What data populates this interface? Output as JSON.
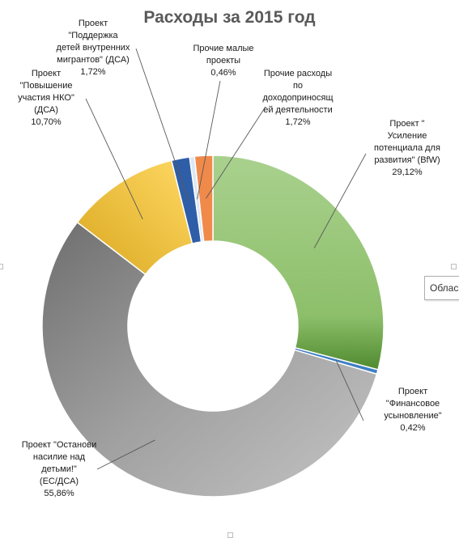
{
  "chart_data": {
    "type": "pie",
    "variant": "donut",
    "title": "Расходы за 2015 год",
    "slices": [
      {
        "label": "Проект \"Усиление потенциала для развития\" (BfW)",
        "value": 29.12,
        "pct_text": "29,12%",
        "color": "#8dbf6a"
      },
      {
        "label": "Проект \"Финансовое усыновление\"",
        "value": 0.42,
        "pct_text": "0,42%",
        "color": "#3f7fc4"
      },
      {
        "label": "Проект \"Останови насилие над детьми!\" (ЕС/ДСА)",
        "value": 55.86,
        "pct_text": "55,86%",
        "color": "#9e9e9e"
      },
      {
        "label": "Проект \"Повышение участия НКО\" (ДСА)",
        "value": 10.7,
        "pct_text": "10,70%",
        "color": "#f2c43f"
      },
      {
        "label": "Проект \"Поддержка детей внутренних мигрантов\" (ДСА)",
        "value": 1.72,
        "pct_text": "1,72%",
        "color": "#2f5ea8"
      },
      {
        "label": "Прочие малые проекты",
        "value": 0.46,
        "pct_text": "0,46%",
        "color": "#dbe7f5"
      },
      {
        "label": "Прочие расходы по доходоприносящей деятельности",
        "value": 1.72,
        "pct_text": "1,72%",
        "color": "#f08a4b"
      }
    ]
  },
  "labels": {
    "bfw": "Проект \"\nУсиление\nпотенциала для\nразвития\" (BfW)\n29,12%",
    "adoption": "Проект\n\"Финансовое\nусыновление\"\n0,42%",
    "stop_violence": "Проект \"Останови\nнасилие над\nдетьми!\"\n(ЕС/ДСА)\n55,86%",
    "nko": "Проект\n\"Повышение\nучастия НКО\"\n(ДСА)\n10,70%",
    "migrants": "Проект\n\"Поддержка\nдетей внутренних\nмигрантов\" (ДСА)\n1,72%",
    "small": "Прочие малые\nпроекты\n0,46%",
    "income": "Прочие расходы\nпо\nдоходоприносящ\nей деятельности\n1,72%"
  },
  "tooltip": "Облас"
}
